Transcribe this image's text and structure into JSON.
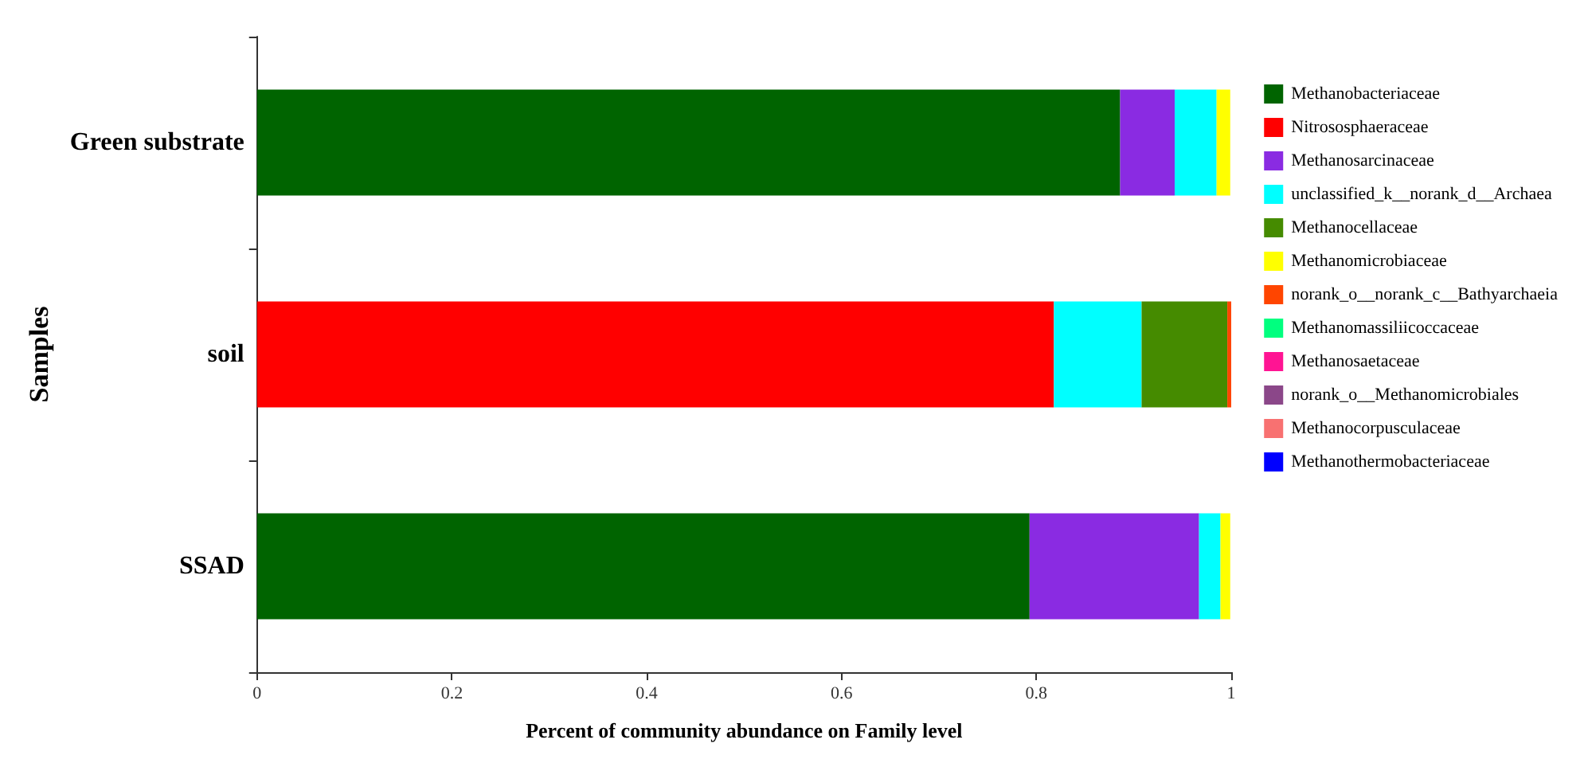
{
  "chart_data": {
    "type": "bar",
    "orientation": "horizontal",
    "stacked": true,
    "xlabel": "Percent of community abundance on Family level",
    "ylabel": "Samples",
    "categories": [
      "Green substrate",
      "soil",
      "SSAD"
    ],
    "xlim": [
      0,
      1
    ],
    "xticks": [
      0,
      0.2,
      0.4,
      0.6,
      0.8,
      1
    ],
    "grid": false,
    "legend": "right",
    "series": [
      {
        "name": "Methanobacteriaceae",
        "color": "#006400",
        "values": [
          0.886,
          0,
          0.793
        ]
      },
      {
        "name": "Nitrososphaeraceae",
        "color": "#ff0000",
        "values": [
          0,
          0.818,
          0
        ]
      },
      {
        "name": "Methanosarcinaceae",
        "color": "#8a2be2",
        "values": [
          0.056,
          0,
          0.174
        ]
      },
      {
        "name": "unclassified_k__norank_d__Archaea",
        "color": "#00ffff",
        "values": [
          0.043,
          0.09,
          0.022
        ]
      },
      {
        "name": "Methanocellaceae",
        "color": "#458b00",
        "values": [
          0,
          0.088,
          0
        ]
      },
      {
        "name": "Methanomicrobiaceae",
        "color": "#ffff00",
        "values": [
          0.014,
          0,
          0.01
        ]
      },
      {
        "name": "norank_o__norank_c__Bathyarchaeia",
        "color": "#ff4500",
        "values": [
          0,
          0.004,
          0
        ]
      },
      {
        "name": "Methanomassiliicoccaceae",
        "color": "#00ff7f",
        "values": [
          0,
          0,
          0
        ]
      },
      {
        "name": "Methanosaetaceae",
        "color": "#ff1493",
        "values": [
          0,
          0,
          0
        ]
      },
      {
        "name": "norank_o__Methanomicrobiales",
        "color": "#8b4789",
        "values": [
          0,
          0,
          0
        ]
      },
      {
        "name": "Methanocorpusculaceae",
        "color": "#f87171",
        "values": [
          0,
          0,
          0
        ]
      },
      {
        "name": "Methanothermobacteriaceae",
        "color": "#0000ff",
        "values": [
          0,
          0,
          0
        ]
      }
    ]
  }
}
